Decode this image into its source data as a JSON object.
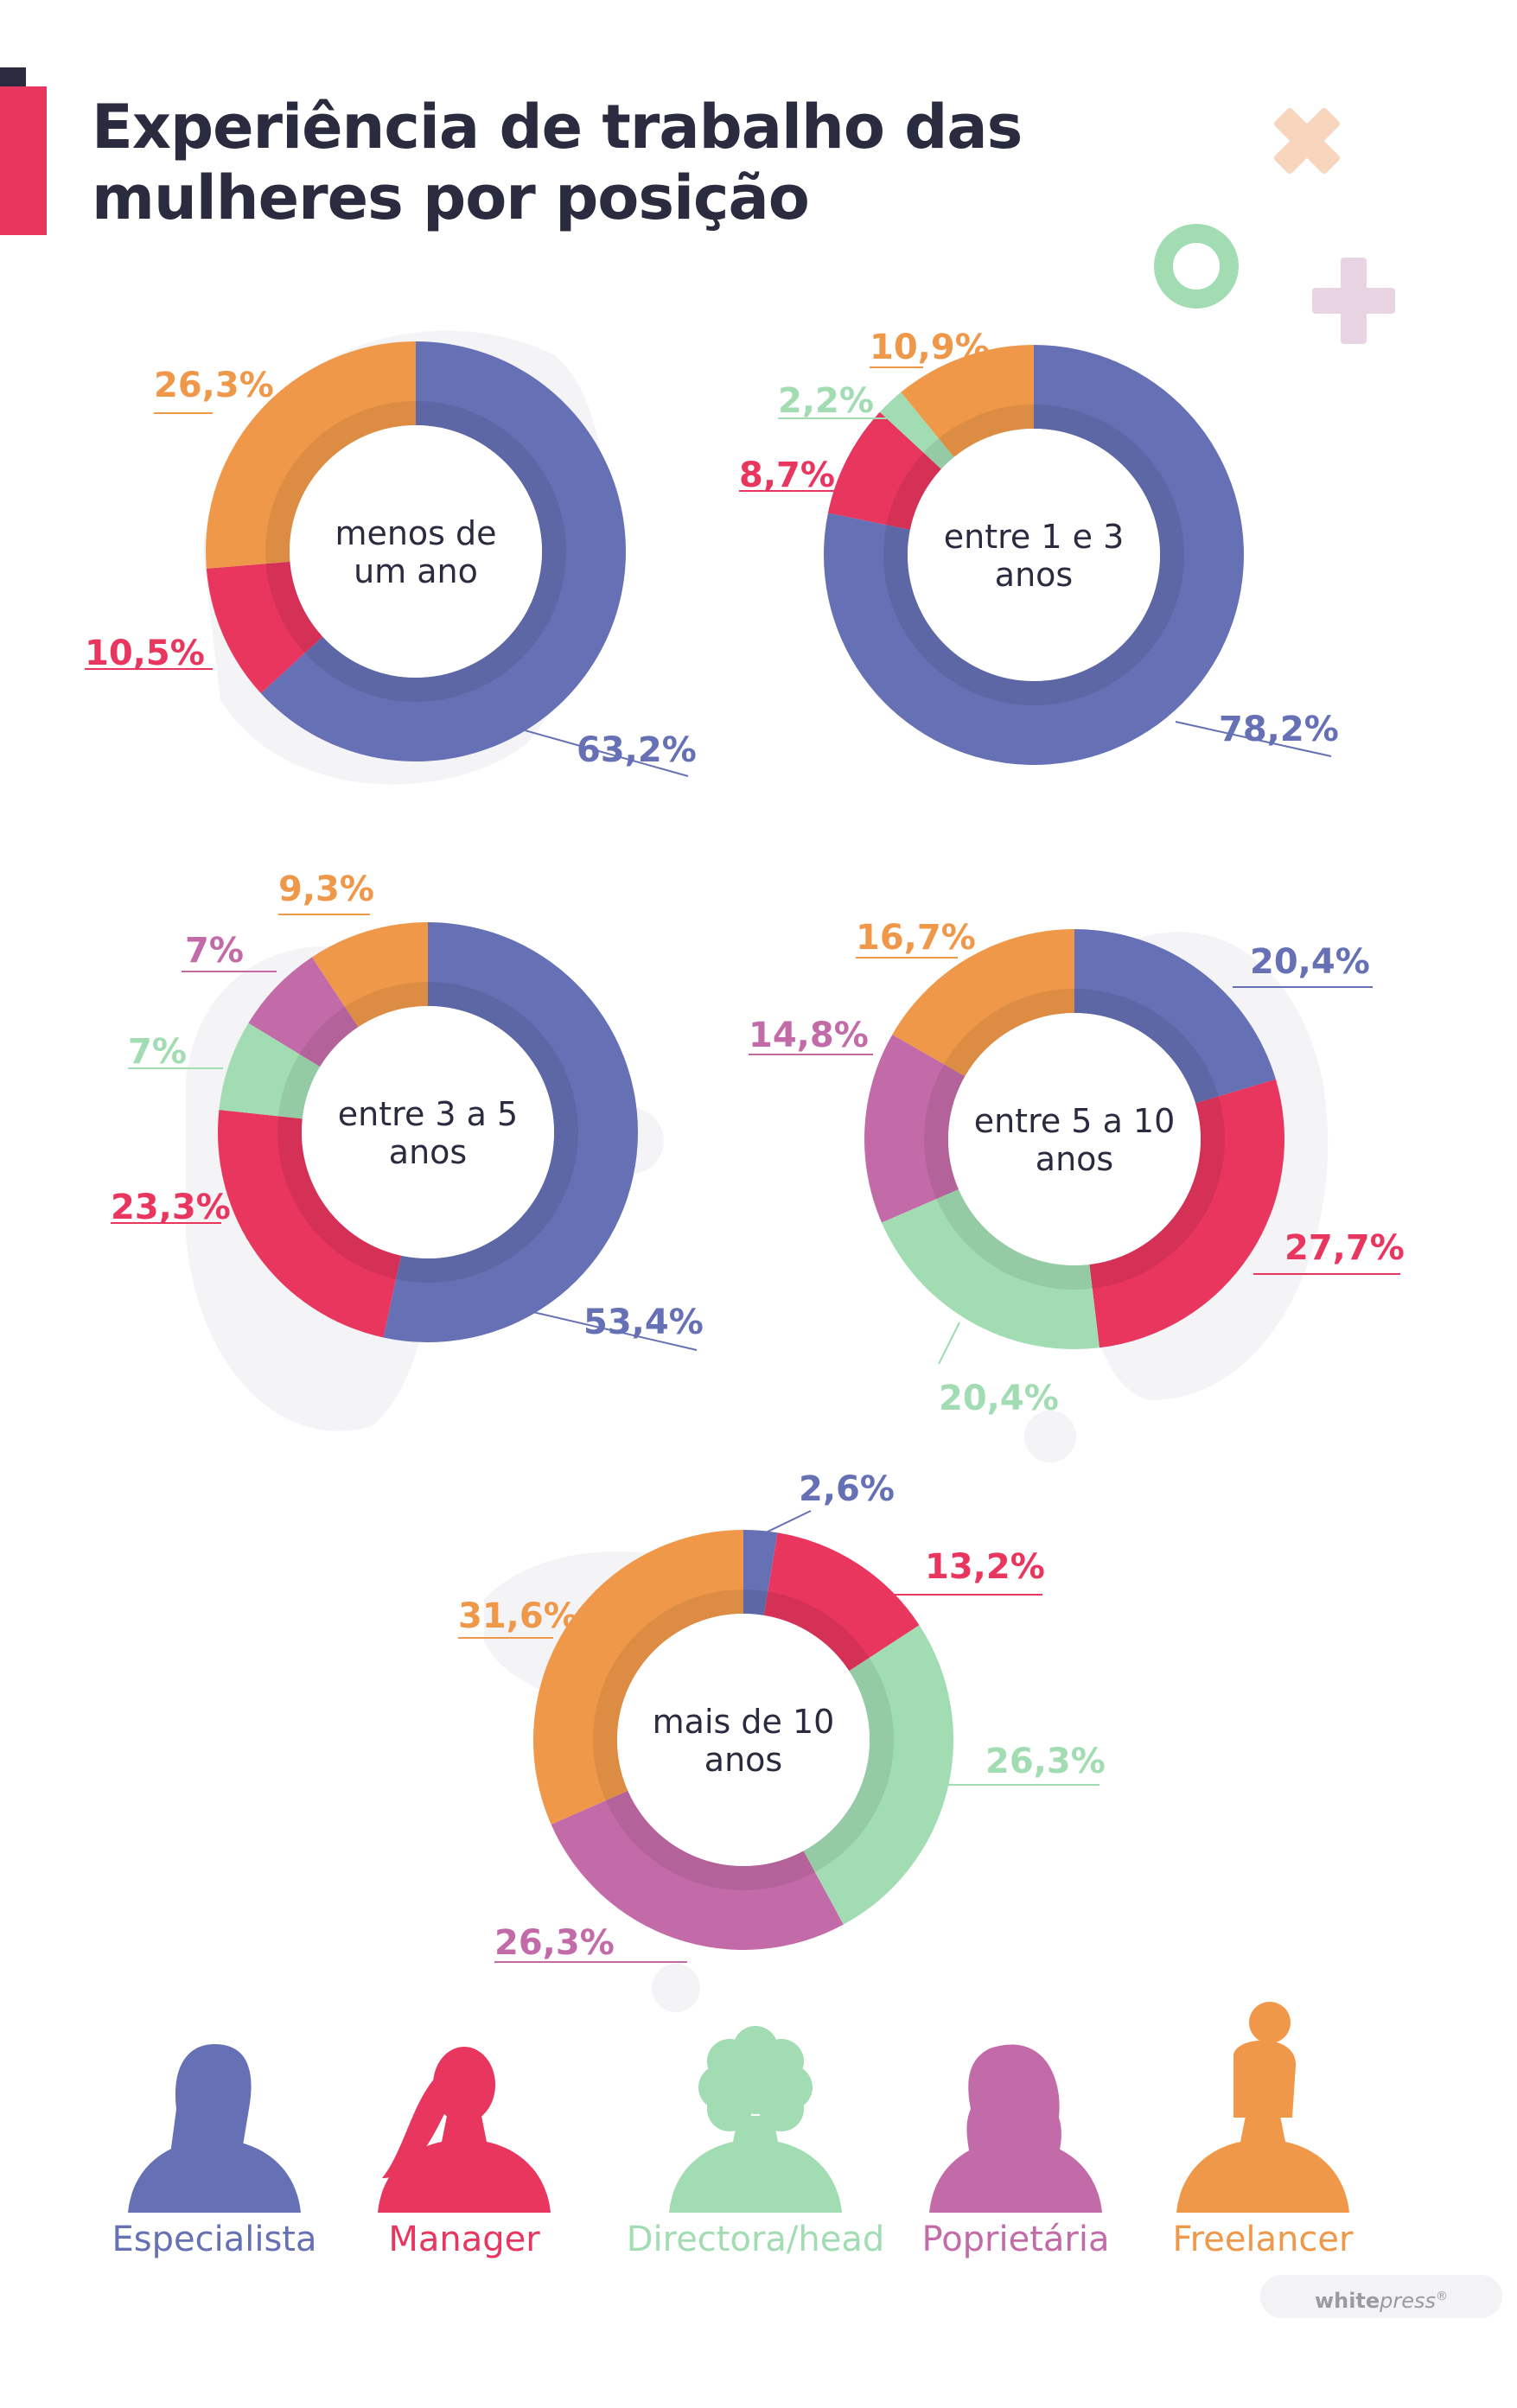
{
  "title": {
    "line1": "Experiência de trabalho das",
    "line2": "mulheres por posição"
  },
  "colors": {
    "Especialista": "#6670b5",
    "Manager": "#e8365f",
    "Directora/head": "#a1dcb2",
    "Poprietária": "#c36ba8",
    "Freelancer": "#f0984a",
    "title": "#2a2b3e"
  },
  "legend": [
    {
      "label": "Especialista",
      "icon": "woman-short-hair-icon"
    },
    {
      "label": "Manager",
      "icon": "woman-ponytail-icon"
    },
    {
      "label": "Directora/head",
      "icon": "woman-curly-hair-icon"
    },
    {
      "label": "Poprietária",
      "icon": "woman-wavy-hair-icon"
    },
    {
      "label": "Freelancer",
      "icon": "woman-bun-hair-icon"
    }
  ],
  "brand": {
    "bold": "white",
    "italic": "press",
    "mark": "®"
  },
  "chart_data": [
    {
      "type": "pie",
      "center_label": [
        "menos de",
        "um ano"
      ],
      "slices": [
        {
          "series": "Especialista",
          "value": 63.2,
          "label": "63,2%"
        },
        {
          "series": "Manager",
          "value": 10.5,
          "label": "10,5%"
        },
        {
          "series": "Freelancer",
          "value": 26.3,
          "label": "26,3%"
        }
      ]
    },
    {
      "type": "pie",
      "center_label": [
        "entre 1 e 3",
        "anos"
      ],
      "slices": [
        {
          "series": "Especialista",
          "value": 78.2,
          "label": "78,2%"
        },
        {
          "series": "Manager",
          "value": 8.7,
          "label": "8,7%"
        },
        {
          "series": "Directora/head",
          "value": 2.2,
          "label": "2,2%"
        },
        {
          "series": "Freelancer",
          "value": 10.9,
          "label": "10,9%"
        }
      ]
    },
    {
      "type": "pie",
      "center_label": [
        "entre 3 a 5",
        "anos"
      ],
      "slices": [
        {
          "series": "Especialista",
          "value": 53.4,
          "label": "53,4%"
        },
        {
          "series": "Manager",
          "value": 23.3,
          "label": "23,3%"
        },
        {
          "series": "Directora/head",
          "value": 7,
          "label": "7%"
        },
        {
          "series": "Poprietária",
          "value": 7,
          "label": "7%"
        },
        {
          "series": "Freelancer",
          "value": 9.3,
          "label": "9,3%"
        }
      ]
    },
    {
      "type": "pie",
      "center_label": [
        "entre 5 a 10",
        "anos"
      ],
      "slices": [
        {
          "series": "Especialista",
          "value": 20.4,
          "label": "20,4%"
        },
        {
          "series": "Manager",
          "value": 27.7,
          "label": "27,7%"
        },
        {
          "series": "Directora/head",
          "value": 20.4,
          "label": "20,4%"
        },
        {
          "series": "Poprietária",
          "value": 14.8,
          "label": "14,8%"
        },
        {
          "series": "Freelancer",
          "value": 16.7,
          "label": "16,7%"
        }
      ]
    },
    {
      "type": "pie",
      "center_label": [
        "mais de 10",
        "anos"
      ],
      "slices": [
        {
          "series": "Especialista",
          "value": 2.6,
          "label": "2,6%"
        },
        {
          "series": "Manager",
          "value": 13.2,
          "label": "13,2%"
        },
        {
          "series": "Directora/head",
          "value": 26.3,
          "label": "26,3%"
        },
        {
          "series": "Poprietária",
          "value": 26.3,
          "label": "26,3%"
        },
        {
          "series": "Freelancer",
          "value": 31.6,
          "label": "31,6%"
        }
      ]
    }
  ]
}
